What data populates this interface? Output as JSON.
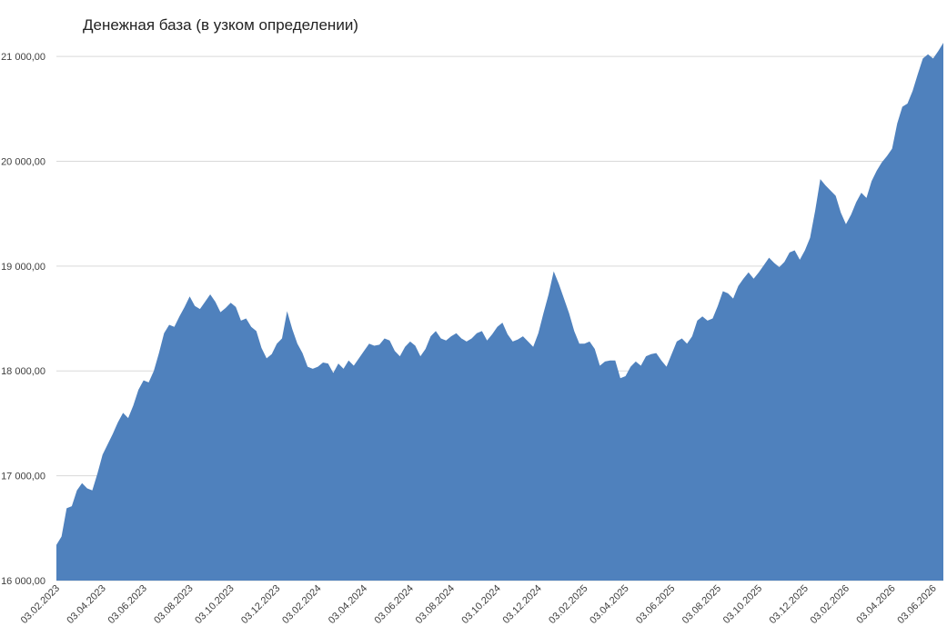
{
  "chart_data": {
    "type": "area",
    "title": "Денежная база (в узком определении)",
    "categories": [
      "03.02.2023",
      null,
      null,
      null,
      null,
      null,
      null,
      null,
      null,
      "03.04.2023",
      null,
      null,
      null,
      null,
      null,
      null,
      null,
      "03.06.2023",
      null,
      null,
      null,
      null,
      null,
      null,
      null,
      null,
      "03.08.2023",
      null,
      null,
      null,
      null,
      null,
      null,
      null,
      "03.10.2023",
      null,
      null,
      null,
      null,
      null,
      null,
      null,
      null,
      "03.12.2023",
      null,
      null,
      null,
      null,
      null,
      null,
      null,
      "03.02.2024",
      null,
      null,
      null,
      null,
      null,
      null,
      null,
      null,
      "03.04.2024",
      null,
      null,
      null,
      null,
      null,
      null,
      null,
      null,
      "03.06.2024",
      null,
      null,
      null,
      null,
      null,
      null,
      null,
      "03.08.2024",
      null,
      null,
      null,
      null,
      null,
      null,
      null,
      null,
      "03.10.2024",
      null,
      null,
      null,
      null,
      null,
      null,
      null,
      "03.12.2024",
      null,
      null,
      null,
      null,
      null,
      null,
      null,
      null,
      "03.02.2025",
      null,
      null,
      null,
      null,
      null,
      null,
      null,
      "03.04.2025",
      null,
      null,
      null,
      null,
      null,
      null,
      null,
      null,
      "03.06.2025",
      null,
      null,
      null,
      null,
      null,
      null,
      null,
      null,
      "03.08.2025",
      null,
      null,
      null,
      null,
      null,
      null,
      null,
      "03.10.2025",
      null,
      null,
      null,
      null,
      null,
      null,
      null,
      null,
      "03.12.2025",
      null,
      null,
      null,
      null,
      null,
      null,
      null,
      "03.02.2026",
      null,
      null,
      null,
      null,
      null,
      null,
      null,
      null,
      "03.04.2026",
      null,
      null,
      null,
      null,
      null,
      null,
      null,
      "03.06.2026",
      null,
      null
    ],
    "values": [
      16340,
      16420,
      16690,
      16710,
      16860,
      16930,
      16880,
      16860,
      17020,
      17200,
      17300,
      17400,
      17510,
      17600,
      17550,
      17670,
      17820,
      17910,
      17890,
      18000,
      18170,
      18360,
      18440,
      18420,
      18520,
      18610,
      18710,
      18620,
      18590,
      18660,
      18730,
      18660,
      18560,
      18600,
      18650,
      18610,
      18480,
      18500,
      18420,
      18380,
      18220,
      18120,
      18160,
      18260,
      18310,
      18570,
      18400,
      18260,
      18170,
      18040,
      18020,
      18040,
      18080,
      18070,
      17980,
      18070,
      18020,
      18100,
      18050,
      18120,
      18190,
      18260,
      18240,
      18250,
      18310,
      18290,
      18190,
      18140,
      18230,
      18280,
      18240,
      18140,
      18210,
      18330,
      18380,
      18310,
      18290,
      18330,
      18360,
      18310,
      18280,
      18310,
      18360,
      18380,
      18290,
      18350,
      18420,
      18460,
      18350,
      18280,
      18300,
      18330,
      18280,
      18230,
      18360,
      18550,
      18730,
      18950,
      18830,
      18690,
      18550,
      18380,
      18260,
      18260,
      18280,
      18210,
      18050,
      18090,
      18100,
      18100,
      17930,
      17950,
      18040,
      18090,
      18050,
      18140,
      18160,
      18170,
      18100,
      18040,
      18160,
      18280,
      18310,
      18260,
      18330,
      18480,
      18520,
      18480,
      18500,
      18620,
      18760,
      18740,
      18690,
      18810,
      18880,
      18940,
      18880,
      18940,
      19010,
      19080,
      19030,
      18990,
      19040,
      19130,
      19150,
      19060,
      19150,
      19270,
      19530,
      19830,
      19770,
      19720,
      19670,
      19510,
      19400,
      19490,
      19610,
      19700,
      19650,
      19810,
      19910,
      19990,
      20050,
      20120,
      20360,
      20520,
      20550,
      20670,
      20830,
      20980,
      21020,
      20980,
      21050,
      21130
    ],
    "color": "#4f81bd",
    "ylim": [
      16000,
      21200
    ],
    "yticks": [
      {
        "value": 16000,
        "label": "16 000,00"
      },
      {
        "value": 17000,
        "label": "17 000,00"
      },
      {
        "value": 18000,
        "label": "18 000,00"
      },
      {
        "value": 19000,
        "label": "19 000,00"
      },
      {
        "value": 20000,
        "label": "20 000,00"
      },
      {
        "value": 21000,
        "label": "21 000,00"
      }
    ],
    "grid": true
  }
}
